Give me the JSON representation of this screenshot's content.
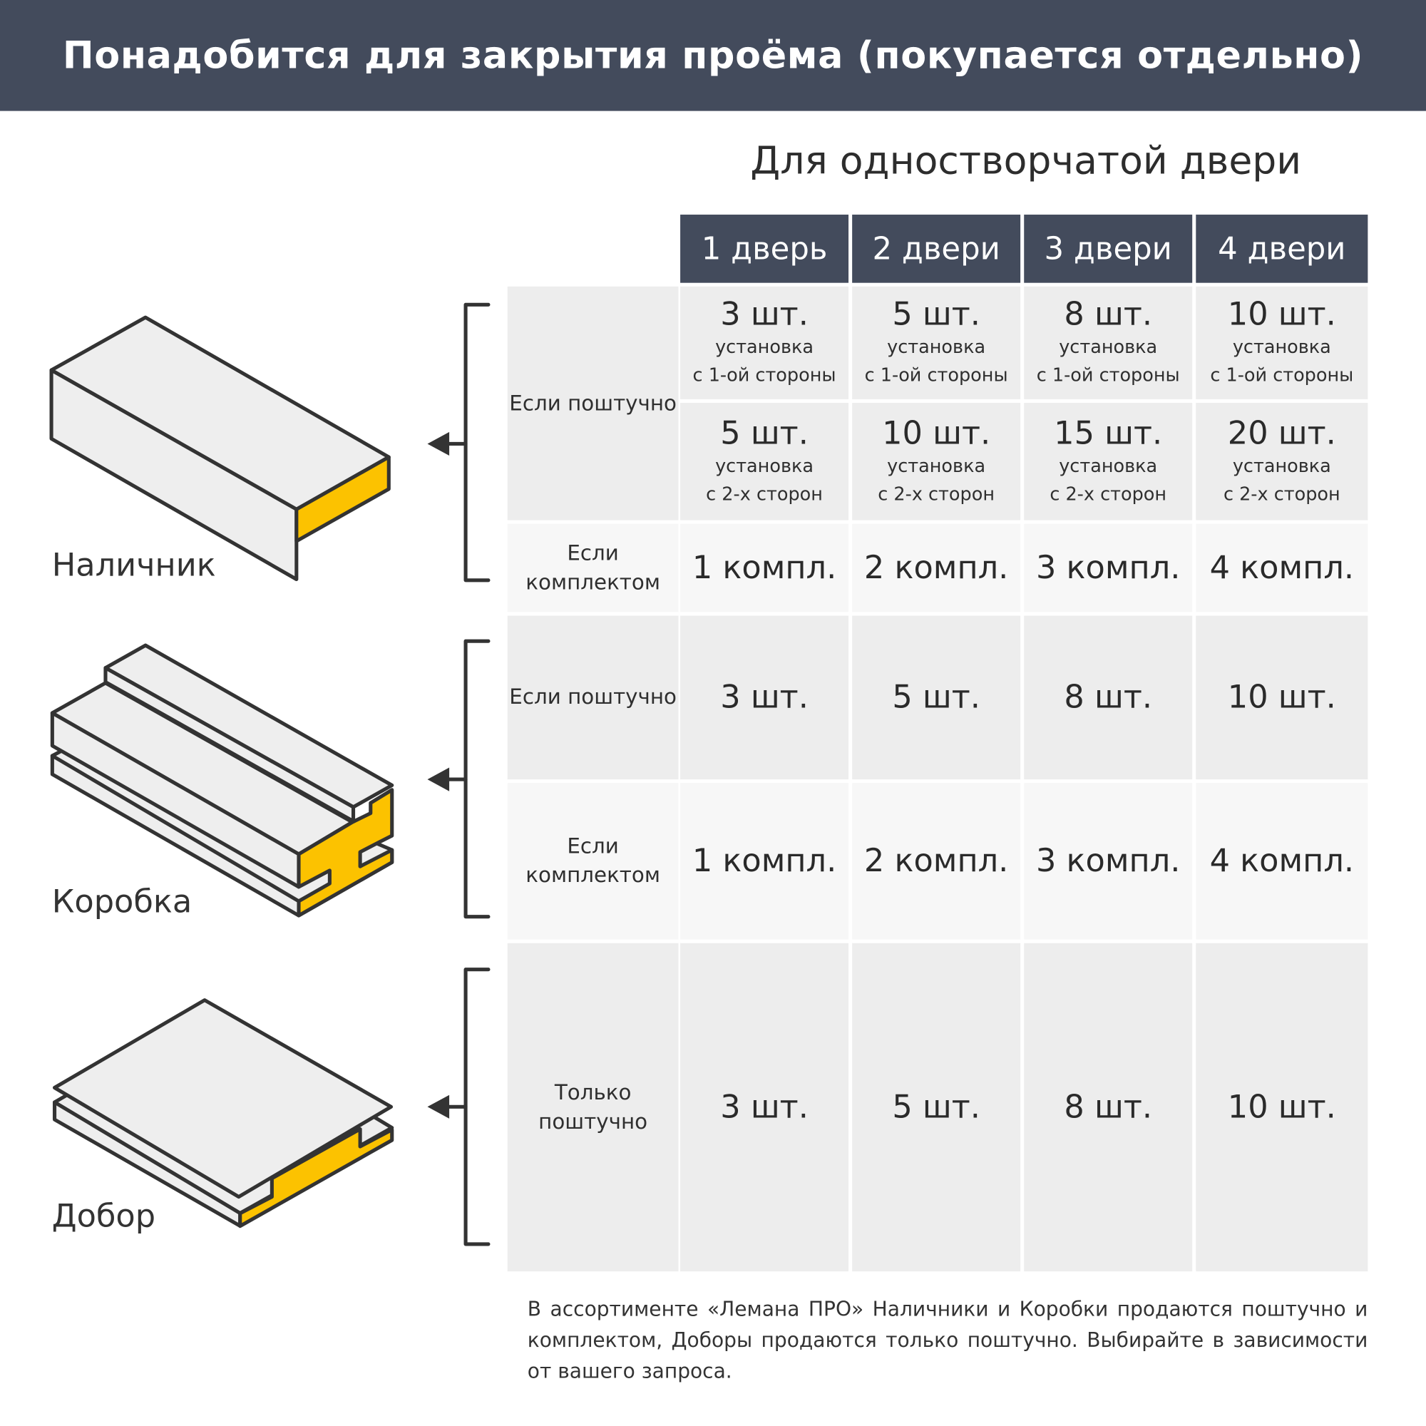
{
  "banner_title": "Понадобится для закрытия проёма (покупается отдельно)",
  "subtitle": "Для одностворчатой двери",
  "columns": [
    "1 дверь",
    "2 двери",
    "3 двери",
    "4 двери"
  ],
  "products": [
    {
      "name": "Наличник",
      "rows": [
        {
          "label": "Если поштучно",
          "sub_rows": [
            {
              "cells": [
                {
                  "qty": "3 шт.",
                  "note1": "установка",
                  "note2": "с 1-ой стороны"
                },
                {
                  "qty": "5 шт.",
                  "note1": "установка",
                  "note2": "с 1-ой стороны"
                },
                {
                  "qty": "8 шт.",
                  "note1": "установка",
                  "note2": "с 1-ой стороны"
                },
                {
                  "qty": "10 шт.",
                  "note1": "установка",
                  "note2": "с 1-ой стороны"
                }
              ]
            },
            {
              "cells": [
                {
                  "qty": "5 шт.",
                  "note1": "установка",
                  "note2": "с 2-х сторон"
                },
                {
                  "qty": "10 шт.",
                  "note1": "установка",
                  "note2": "с 2-х сторон"
                },
                {
                  "qty": "15 шт.",
                  "note1": "установка",
                  "note2": "с 2-х сторон"
                },
                {
                  "qty": "20 шт.",
                  "note1": "установка",
                  "note2": "с 2-х сторон"
                }
              ]
            }
          ]
        },
        {
          "label": "Если комплектом",
          "cells": [
            "1 компл.",
            "2 компл.",
            "3 компл.",
            "4 компл."
          ]
        }
      ]
    },
    {
      "name": "Коробка",
      "rows": [
        {
          "label": "Если поштучно",
          "cells": [
            "3 шт.",
            "5 шт.",
            "8 шт.",
            "10 шт."
          ]
        },
        {
          "label": "Если комплектом",
          "cells": [
            "1 компл.",
            "2 компл.",
            "3 компл.",
            "4 компл."
          ]
        }
      ]
    },
    {
      "name": "Добор",
      "rows": [
        {
          "label": "Только поштучно",
          "cells": [
            "3 шт.",
            "5 шт.",
            "8 шт.",
            "10 шт."
          ]
        }
      ]
    }
  ],
  "footnote": "В ассортименте «Лемана ПРО» Наличники и Коробки продаются поштучно и комплектом, Доборы продаются только поштучно. Выбирайте в зависимости от вашего запроса.",
  "colors": {
    "header": "#434b5c",
    "accent_yellow": "#fcc200",
    "row_dark": "#ededed",
    "row_light": "#f7f7f7",
    "outline": "#333333"
  },
  "icons": [
    "casing-profile-illustration",
    "door-frame-profile-illustration",
    "extension-board-illustration",
    "bracket-arrow-icon"
  ]
}
